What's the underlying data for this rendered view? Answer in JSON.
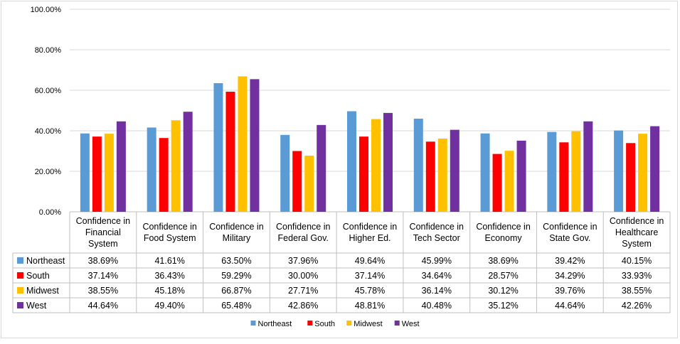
{
  "chart_data": {
    "type": "bar",
    "categories": [
      [
        "Confidence in",
        "Financial",
        "System"
      ],
      [
        "Confidence in",
        "Food System"
      ],
      [
        "Confidence in",
        "Military"
      ],
      [
        "Confidence in",
        "Federal Gov."
      ],
      [
        "Confidence in",
        "Higher Ed."
      ],
      [
        "Confidence in",
        "Tech Sector"
      ],
      [
        "Confidence in",
        "Economy"
      ],
      [
        "Confidence in",
        "State Gov."
      ],
      [
        "Confidence in",
        "Healthcare",
        "System"
      ]
    ],
    "series": [
      {
        "name": "Northeast",
        "color": "#5b9bd5",
        "values": [
          38.69,
          41.61,
          63.5,
          37.96,
          49.64,
          45.99,
          38.69,
          39.42,
          40.15
        ],
        "labels": [
          "38.69%",
          "41.61%",
          "63.50%",
          "37.96%",
          "49.64%",
          "45.99%",
          "38.69%",
          "39.42%",
          "40.15%"
        ]
      },
      {
        "name": "South",
        "color": "#ff0000",
        "values": [
          37.14,
          36.43,
          59.29,
          30.0,
          37.14,
          34.64,
          28.57,
          34.29,
          33.93
        ],
        "labels": [
          "37.14%",
          "36.43%",
          "59.29%",
          "30.00%",
          "37.14%",
          "34.64%",
          "28.57%",
          "34.29%",
          "33.93%"
        ]
      },
      {
        "name": "Midwest",
        "color": "#ffc000",
        "values": [
          38.55,
          45.18,
          66.87,
          27.71,
          45.78,
          36.14,
          30.12,
          39.76,
          38.55
        ],
        "labels": [
          "38.55%",
          "45.18%",
          "66.87%",
          "27.71%",
          "45.78%",
          "36.14%",
          "30.12%",
          "39.76%",
          "38.55%"
        ]
      },
      {
        "name": "West",
        "color": "#7030a0",
        "values": [
          44.64,
          49.4,
          65.48,
          42.86,
          48.81,
          40.48,
          35.12,
          44.64,
          42.26
        ],
        "labels": [
          "44.64%",
          "49.40%",
          "65.48%",
          "42.86%",
          "48.81%",
          "40.48%",
          "35.12%",
          "44.64%",
          "42.26%"
        ]
      }
    ],
    "ylim": [
      0,
      100
    ],
    "yticks": [
      0,
      20,
      40,
      60,
      80,
      100
    ],
    "ytick_labels": [
      "0.00%",
      "20.00%",
      "40.00%",
      "60.00%",
      "80.00%",
      "100.00%"
    ],
    "grid": true,
    "legend_position": "bottom",
    "data_table": true
  }
}
